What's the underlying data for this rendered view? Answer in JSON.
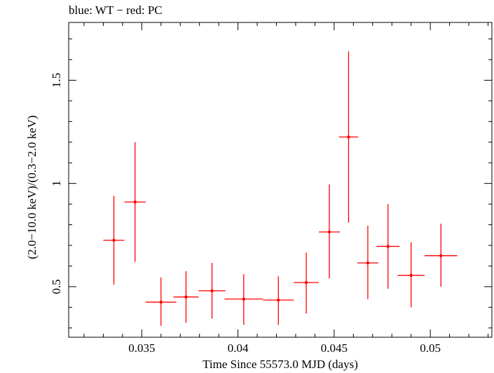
{
  "chart_data": {
    "type": "scatter",
    "title": "blue: WT − red: PC",
    "xlabel": "Time Since 55573.0 MJD (days)",
    "ylabel": "(2.0−10.0 keV)/(0.3−2.0 keV)",
    "xlim": [
      0.0312,
      0.0532
    ],
    "ylim": [
      0.255,
      1.78
    ],
    "xticks": [
      0.035,
      0.04,
      0.045,
      0.05
    ],
    "xtick_labels": [
      "0.035",
      "0.04",
      "0.045",
      "0.05"
    ],
    "yticks": [
      0.5,
      1,
      1.5
    ],
    "ytick_labels": [
      "0.5",
      "1",
      "1.5"
    ],
    "grid": false,
    "series": [
      {
        "color": "#ff0000",
        "points": [
          {
            "x": 0.03355,
            "y": 0.725,
            "xerr": 0.00055,
            "ylo": 0.51,
            "yhi": 0.94
          },
          {
            "x": 0.03465,
            "y": 0.91,
            "xerr": 0.00055,
            "ylo": 0.62,
            "yhi": 1.2
          },
          {
            "x": 0.036,
            "y": 0.425,
            "xerr": 0.0008,
            "ylo": 0.31,
            "yhi": 0.545
          },
          {
            "x": 0.0373,
            "y": 0.45,
            "xerr": 0.00065,
            "ylo": 0.325,
            "yhi": 0.575
          },
          {
            "x": 0.03865,
            "y": 0.48,
            "xerr": 0.0007,
            "ylo": 0.345,
            "yhi": 0.615
          },
          {
            "x": 0.0403,
            "y": 0.44,
            "xerr": 0.001,
            "ylo": 0.315,
            "yhi": 0.56
          },
          {
            "x": 0.0421,
            "y": 0.435,
            "xerr": 0.0008,
            "ylo": 0.315,
            "yhi": 0.55
          },
          {
            "x": 0.04355,
            "y": 0.52,
            "xerr": 0.00065,
            "ylo": 0.37,
            "yhi": 0.665
          },
          {
            "x": 0.04475,
            "y": 0.765,
            "xerr": 0.00055,
            "ylo": 0.54,
            "yhi": 0.995
          },
          {
            "x": 0.04575,
            "y": 1.225,
            "xerr": 0.0005,
            "ylo": 0.81,
            "yhi": 1.64
          },
          {
            "x": 0.04675,
            "y": 0.615,
            "xerr": 0.00055,
            "ylo": 0.44,
            "yhi": 0.795
          },
          {
            "x": 0.0478,
            "y": 0.695,
            "xerr": 0.0006,
            "ylo": 0.49,
            "yhi": 0.9
          },
          {
            "x": 0.049,
            "y": 0.555,
            "xerr": 0.0007,
            "ylo": 0.4,
            "yhi": 0.715
          },
          {
            "x": 0.05055,
            "y": 0.65,
            "xerr": 0.00085,
            "ylo": 0.5,
            "yhi": 0.805
          }
        ]
      }
    ]
  }
}
